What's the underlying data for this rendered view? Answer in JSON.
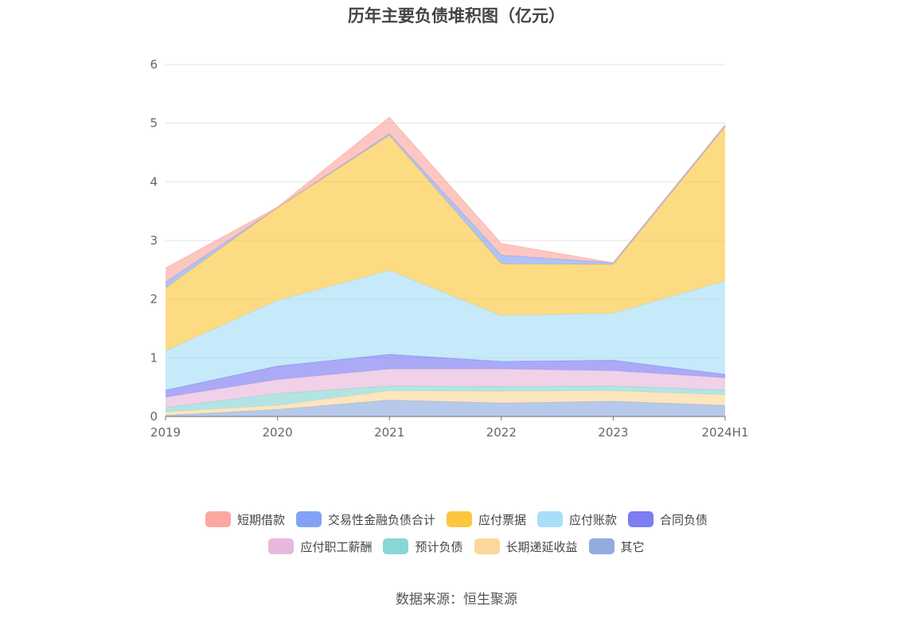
{
  "chart_data": {
    "type": "area",
    "stacked": true,
    "title": "历年主要负债堆积图（亿元）",
    "xlabel": "",
    "ylabel": "",
    "categories": [
      "2019",
      "2020",
      "2021",
      "2022",
      "2023",
      "2024H1"
    ],
    "ylim": [
      0,
      6
    ],
    "yticks": [
      0,
      1,
      2,
      3,
      4,
      5,
      6
    ],
    "grid": true,
    "legend_position": "bottom",
    "series": [
      {
        "name": "其它",
        "color": "#91acde",
        "values": [
          0.02,
          0.12,
          0.28,
          0.23,
          0.26,
          0.19
        ]
      },
      {
        "name": "长期递延收益",
        "color": "#fcd79b",
        "values": [
          0.06,
          0.07,
          0.16,
          0.2,
          0.18,
          0.18
        ]
      },
      {
        "name": "预计负债",
        "color": "#8ad6d6",
        "values": [
          0.07,
          0.2,
          0.08,
          0.08,
          0.08,
          0.08
        ]
      },
      {
        "name": "应付职工薪酬",
        "color": "#e8b8dc",
        "values": [
          0.18,
          0.24,
          0.29,
          0.3,
          0.26,
          0.21
        ]
      },
      {
        "name": "合同负债",
        "color": "#7d7df2",
        "values": [
          0.12,
          0.23,
          0.25,
          0.13,
          0.18,
          0.06
        ]
      },
      {
        "name": "应付账款",
        "color": "#a8dff8",
        "values": [
          0.67,
          1.12,
          1.43,
          0.78,
          0.8,
          1.59
        ]
      },
      {
        "name": "应付票据",
        "color": "#fcc73f",
        "values": [
          1.07,
          1.58,
          2.3,
          0.88,
          0.83,
          2.63
        ]
      },
      {
        "name": "交易性金融负债合计",
        "color": "#82a3f5",
        "values": [
          0.1,
          0.0,
          0.03,
          0.15,
          0.03,
          0.03
        ]
      },
      {
        "name": "短期借款",
        "color": "#fba89f",
        "values": [
          0.24,
          0.01,
          0.28,
          0.2,
          0.0,
          0.0
        ]
      }
    ]
  },
  "legend_rows": [
    [
      {
        "name": "短期借款",
        "color": "#fba89f"
      },
      {
        "name": "交易性金融负债合计",
        "color": "#82a3f5"
      },
      {
        "name": "应付票据",
        "color": "#fcc73f"
      },
      {
        "name": "应付账款",
        "color": "#a8dff8"
      },
      {
        "name": "合同负债",
        "color": "#7d7df2"
      }
    ],
    [
      {
        "name": "应付职工薪酬",
        "color": "#e8b8dc"
      },
      {
        "name": "预计负债",
        "color": "#8ad6d6"
      },
      {
        "name": "长期递延收益",
        "color": "#fcd79b"
      },
      {
        "name": "其它",
        "color": "#91acde"
      }
    ]
  ],
  "source_note": "数据来源：恒生聚源"
}
